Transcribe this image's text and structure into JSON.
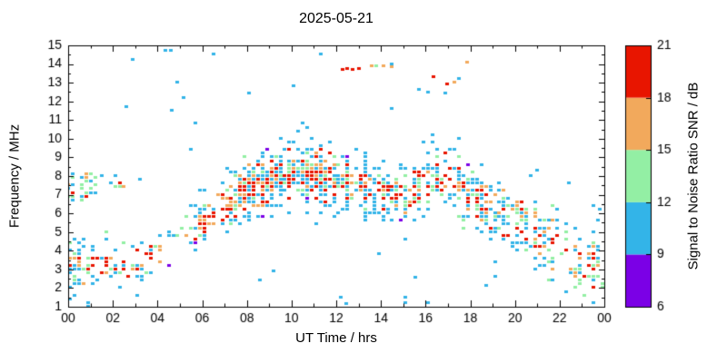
{
  "chart_data": {
    "type": "heatmap",
    "title": "2025-05-21",
    "xlabel": "UT Time / hrs",
    "ylabel": "Frequency / MHz",
    "xlim": [
      0,
      24
    ],
    "ylim": [
      1,
      15
    ],
    "x_ticks": {
      "hours": [
        0,
        2,
        4,
        6,
        8,
        10,
        12,
        14,
        16,
        18,
        20,
        22,
        24
      ],
      "labels": [
        "00",
        "02",
        "04",
        "06",
        "08",
        "10",
        "12",
        "14",
        "16",
        "18",
        "20",
        "22",
        "00"
      ]
    },
    "y_ticks": [
      1,
      2,
      3,
      4,
      5,
      6,
      7,
      8,
      9,
      10,
      11,
      12,
      13,
      14,
      15
    ],
    "colorbar": {
      "label": "Signal to Noise Ratio SNR / dB",
      "ticks": [
        6,
        9,
        12,
        15,
        18,
        21
      ],
      "range": [
        6,
        21
      ],
      "bands": [
        {
          "from": 6,
          "to": 9,
          "color": "#7b00e6"
        },
        {
          "from": 9,
          "to": 12,
          "color": "#33b4e8"
        },
        {
          "from": 12,
          "to": 15,
          "color": "#93efa4"
        },
        {
          "from": 15,
          "to": 18,
          "color": "#f2a95c"
        },
        {
          "from": 18,
          "to": 21,
          "color": "#e81500"
        }
      ]
    },
    "band_by_hour": {
      "hours": [
        0,
        1,
        2,
        3,
        4,
        5,
        6,
        7,
        8,
        9,
        10,
        11,
        12,
        13,
        14,
        15,
        16,
        17,
        18,
        19,
        20,
        21,
        22,
        23,
        24
      ],
      "center_mhz": [
        3.2,
        3.0,
        3.2,
        3.2,
        3.8,
        4.8,
        5.8,
        6.5,
        7.3,
        7.8,
        8.0,
        8.2,
        7.8,
        7.5,
        7.3,
        7.0,
        7.8,
        7.8,
        7.0,
        6.2,
        5.5,
        4.6,
        4.0,
        3.5,
        3.2
      ],
      "halfwidth_mhz": [
        2.0,
        1.8,
        1.5,
        1.3,
        1.1,
        1.1,
        1.2,
        1.5,
        1.6,
        1.7,
        1.8,
        1.9,
        1.7,
        1.6,
        1.5,
        1.6,
        1.7,
        1.7,
        1.8,
        1.8,
        2.0,
        2.0,
        2.0,
        2.0,
        2.0
      ],
      "density": [
        0.55,
        0.5,
        0.35,
        0.45,
        0.3,
        0.35,
        0.6,
        0.75,
        0.85,
        0.9,
        0.9,
        0.9,
        0.85,
        0.8,
        0.75,
        0.7,
        0.85,
        0.85,
        0.8,
        0.7,
        0.6,
        0.55,
        0.45,
        0.5,
        0.5
      ]
    },
    "extra_clusters": [
      {
        "t0": 0.0,
        "t1": 1.25,
        "f0": 6.7,
        "f1": 8.2,
        "density": 0.5
      },
      {
        "t0": 1.3,
        "t1": 2.6,
        "f0": 7.4,
        "f1": 8.1,
        "density": 0.25
      },
      {
        "t0": 2.6,
        "t1": 3.4,
        "f0": 7.6,
        "f1": 8.0,
        "density": 0.18
      }
    ],
    "sporadic_points": [
      [
        4.35,
        14.7,
        10
      ],
      [
        4.6,
        14.7,
        10
      ],
      [
        2.6,
        11.7,
        10
      ],
      [
        4.9,
        13.0,
        10
      ],
      [
        5.15,
        12.2,
        10
      ],
      [
        4.65,
        11.5,
        10
      ],
      [
        6.5,
        14.5,
        10
      ],
      [
        11.3,
        14.5,
        10
      ],
      [
        12.3,
        13.7,
        19
      ],
      [
        12.5,
        13.75,
        19
      ],
      [
        12.75,
        13.7,
        19
      ],
      [
        13.0,
        13.75,
        19
      ],
      [
        13.6,
        13.9,
        16
      ],
      [
        14.1,
        13.9,
        16
      ],
      [
        14.5,
        13.85,
        16
      ],
      [
        13.8,
        13.9,
        13
      ],
      [
        16.35,
        13.3,
        19
      ],
      [
        16.95,
        12.9,
        19
      ],
      [
        17.3,
        13.0,
        16
      ],
      [
        17.85,
        14.1,
        16
      ],
      [
        16.1,
        12.45,
        10
      ],
      [
        15.7,
        12.6,
        10
      ],
      [
        9.2,
        2.9,
        10
      ],
      [
        8.6,
        2.4,
        10
      ],
      [
        12.2,
        1.5,
        10
      ],
      [
        12.45,
        1.15,
        10
      ],
      [
        15.1,
        1.5,
        10
      ],
      [
        15.55,
        2.55,
        10
      ],
      [
        18.7,
        2.1,
        10
      ],
      [
        21.0,
        8.3,
        10
      ],
      [
        22.4,
        7.6,
        10
      ],
      [
        23.5,
        6.4,
        10
      ],
      [
        23.8,
        6.2,
        10
      ]
    ]
  }
}
